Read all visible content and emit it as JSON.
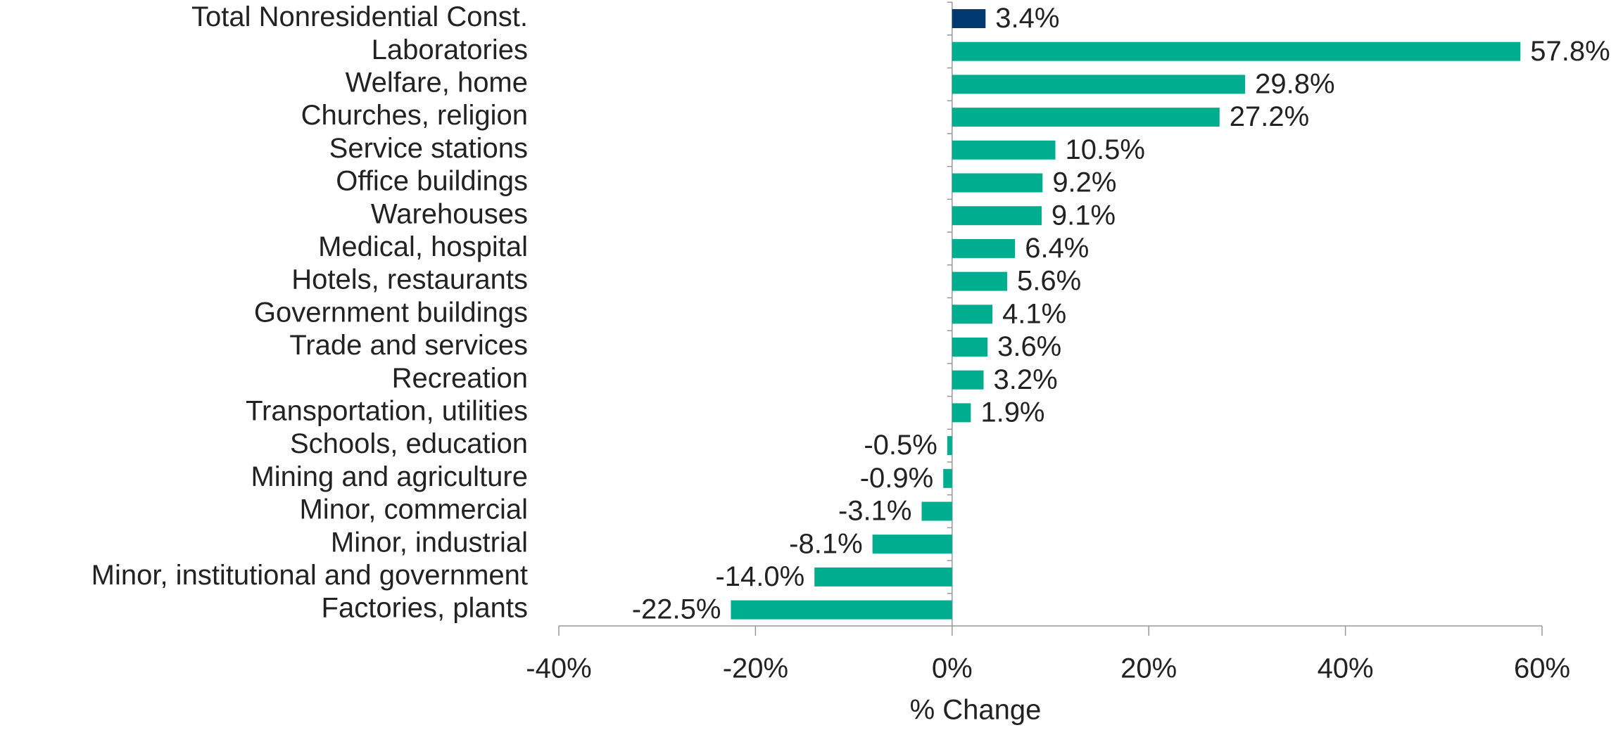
{
  "chart_data": {
    "type": "bar",
    "orientation": "horizontal",
    "x_label": "% Change",
    "categories": [
      "Total Nonresidential Const.",
      "Laboratories",
      "Welfare, home",
      "Churches, religion",
      "Service stations",
      "Office buildings",
      "Warehouses",
      "Medical, hospital",
      "Hotels, restaurants",
      "Government buildings",
      "Trade and services",
      "Recreation",
      "Transportation, utilities",
      "Schools, education",
      "Mining and agriculture",
      "Minor, commercial",
      "Minor, industrial",
      "Minor, institutional and government",
      "Factories, plants"
    ],
    "values": [
      3.4,
      57.8,
      29.8,
      27.2,
      10.5,
      9.2,
      9.1,
      6.4,
      5.6,
      4.1,
      3.6,
      3.2,
      1.9,
      -0.5,
      -0.9,
      -3.1,
      -8.1,
      -14.0,
      -22.5
    ],
    "value_labels": [
      "3.4%",
      "57.8%",
      "29.8%",
      "27.2%",
      "10.5%",
      "9.2%",
      "9.1%",
      "6.4%",
      "5.6%",
      "4.1%",
      "3.6%",
      "3.2%",
      "1.9%",
      "-0.5%",
      "-0.9%",
      "-3.1%",
      "-8.1%",
      "-14.0%",
      "-22.5%"
    ],
    "colors": [
      "#003a70",
      "#00ad8e",
      "#00ad8e",
      "#00ad8e",
      "#00ad8e",
      "#00ad8e",
      "#00ad8e",
      "#00ad8e",
      "#00ad8e",
      "#00ad8e",
      "#00ad8e",
      "#00ad8e",
      "#00ad8e",
      "#00ad8e",
      "#00ad8e",
      "#00ad8e",
      "#00ad8e",
      "#00ad8e",
      "#00ad8e"
    ],
    "xlim": [
      -40,
      60
    ],
    "xticks": [
      {
        "value": -40,
        "label": "-40%"
      },
      {
        "value": -20,
        "label": "-20%"
      },
      {
        "value": 0,
        "label": "0%"
      },
      {
        "value": 20,
        "label": "20%"
      },
      {
        "value": 40,
        "label": "40%"
      },
      {
        "value": 60,
        "label": "60%"
      }
    ],
    "grid": false
  }
}
